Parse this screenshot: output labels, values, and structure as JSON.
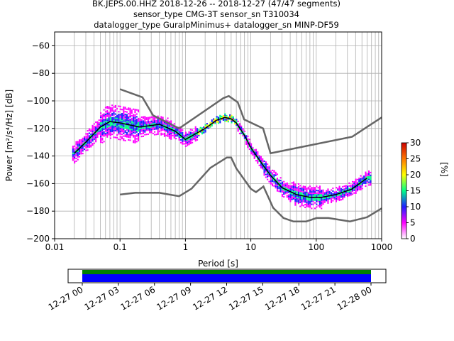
{
  "title_lines": [
    "BK.JEPS.00.HHZ   2018-12-26 -- 2018-12-27  (47/47 segments)",
    "sensor_type CMG-3T sensor_sn T310034",
    "datalogger_type GuralpMinimus+ datalogger_sn MINP-DF59"
  ],
  "chart_data": {
    "type": "heatmap",
    "xlabel": "Period [s]",
    "ylabel": "Power [m²/s⁴/Hz] [dB]",
    "xscale": "log",
    "xlim": [
      0.01,
      1000
    ],
    "ylim": [
      -200,
      -50
    ],
    "xticks": [
      0.01,
      0.1,
      1,
      10,
      100,
      1000
    ],
    "xtick_labels": [
      "0.01",
      "0.1",
      "1",
      "10",
      "100",
      "1000"
    ],
    "yticks": [
      -200,
      -180,
      -160,
      -140,
      -120,
      -100,
      -80,
      -60
    ],
    "ytick_labels": [
      "−200",
      "−180",
      "−160",
      "−140",
      "−120",
      "−100",
      "−80",
      "−60"
    ],
    "grid": true,
    "colorbar": {
      "label": "[%]",
      "range": [
        0,
        30
      ],
      "ticks": [
        0,
        5,
        10,
        15,
        20,
        25,
        30
      ],
      "colors": [
        "#ffffff",
        "#ff00ff",
        "#2020ff",
        "#00ff88",
        "#ffff00",
        "#ff7700",
        "#cc0000"
      ]
    },
    "noise_models": [
      {
        "name": "high",
        "x": [
          0.1,
          0.22,
          0.32,
          0.8,
          3.8,
          4.6,
          6.3,
          7.9,
          15.4,
          20,
          354.8,
          1000
        ],
        "y": [
          -91.5,
          -97.4,
          -110.5,
          -120,
          -98,
          -96.5,
          -101,
          -113.5,
          -120,
          -138,
          -126,
          -112
        ]
      },
      {
        "name": "low",
        "x": [
          0.1,
          0.17,
          0.4,
          0.8,
          1.24,
          2.4,
          4.3,
          5,
          6,
          10,
          12,
          15.6,
          21.9,
          31.6,
          45,
          70,
          101,
          154,
          328,
          600,
          1000
        ],
        "y": [
          -168,
          -166.7,
          -166.7,
          -169.2,
          -163.7,
          -148.6,
          -141.1,
          -141.1,
          -149,
          -163.8,
          -166.2,
          -162.1,
          -177.5,
          -185,
          -187.5,
          -187.5,
          -185,
          -185,
          -187.5,
          -184.4,
          -178
        ]
      }
    ],
    "mean": {
      "x": [
        0.02,
        0.03,
        0.05,
        0.07,
        0.1,
        0.2,
        0.4,
        0.7,
        1,
        2,
        3,
        4,
        5,
        6,
        8,
        10,
        15,
        20,
        30,
        50,
        80,
        120,
        200,
        350,
        600
      ],
      "y": [
        -138,
        -130,
        -119,
        -115,
        -116,
        -119,
        -117,
        -122,
        -128,
        -120,
        -114,
        -112,
        -113,
        -116,
        -125,
        -134,
        -146,
        -154,
        -163,
        -168,
        -170,
        -170,
        -168,
        -164,
        -156
      ]
    },
    "time_axis": {
      "tick_labels": [
        "12-27 00",
        "12-27 03",
        "12-27 06",
        "12-27 09",
        "12-27 12",
        "12-27 15",
        "12-27 18",
        "12-27 21",
        "12-28 00"
      ],
      "coverage": [
        {
          "start": "12-27 00",
          "end": "12-28 00",
          "colors": [
            "#008000",
            "#0000ff"
          ]
        }
      ]
    }
  }
}
